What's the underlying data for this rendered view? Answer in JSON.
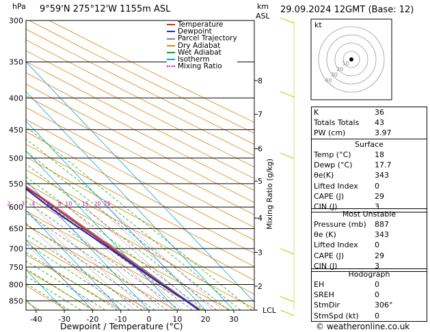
{
  "header": {
    "pressure_unit": "hPa",
    "location": "9°59'N 275°12'W 1155m ASL",
    "km_label": "km",
    "asl_label": "ASL",
    "datetime": "29.09.2024 12GMT (Base: 12)"
  },
  "chart_data": {
    "type": "skew-t log-p",
    "xlabel": "Dewpoint / Temperature (°C)",
    "y2label": "Mixing Ratio (g/kg)",
    "pressure_levels": [
      300,
      350,
      400,
      450,
      500,
      550,
      600,
      650,
      700,
      750,
      800,
      850
    ],
    "temp_ticks": [
      -40,
      -30,
      -20,
      -10,
      0,
      10,
      20,
      30
    ],
    "km_ticks": [
      {
        "label": "8",
        "p": 375
      },
      {
        "label": "7",
        "p": 425
      },
      {
        "label": "6",
        "p": 483
      },
      {
        "label": "5",
        "p": 545
      },
      {
        "label": "4",
        "p": 625
      },
      {
        "label": "3",
        "p": 710
      },
      {
        "label": "2",
        "p": 805
      },
      {
        "label": "LCL",
        "p": 880
      }
    ],
    "mixing_ratio_labels": [
      "1",
      "2",
      "3",
      "4",
      "6",
      "8",
      "10",
      "15",
      "20",
      "25"
    ],
    "legend": [
      {
        "name": "Temperature",
        "color": "#e02020"
      },
      {
        "name": "Dewpoint",
        "color": "#1030d0"
      },
      {
        "name": "Parcel Trajectory",
        "color": "#808080"
      },
      {
        "name": "Dry Adiabat",
        "color": "#e08000"
      },
      {
        "name": "Wet Adiabat",
        "color": "#00aa00"
      },
      {
        "name": "Isotherm",
        "color": "#00a0e0"
      },
      {
        "name": "Mixing Ratio",
        "color": "#d000d0"
      }
    ],
    "legend_position": "top-left",
    "temperature": [
      {
        "p": 880,
        "t": 18.0
      },
      {
        "p": 850,
        "t": 16.4
      },
      {
        "p": 800,
        "t": 13.4
      },
      {
        "p": 750,
        "t": 10.6
      },
      {
        "p": 700,
        "t": 7.6
      },
      {
        "p": 650,
        "t": 4.4
      },
      {
        "p": 600,
        "t": 1.0
      },
      {
        "p": 550,
        "t": -2.8
      },
      {
        "p": 500,
        "t": -7.4
      },
      {
        "p": 450,
        "t": -12.6
      },
      {
        "p": 400,
        "t": -18.4
      },
      {
        "p": 350,
        "t": -26.0
      },
      {
        "p": 300,
        "t": -33.6
      }
    ],
    "dewpoint": [
      {
        "p": 880,
        "t": 17.7
      },
      {
        "p": 850,
        "t": 16.2
      },
      {
        "p": 800,
        "t": 13.0
      },
      {
        "p": 750,
        "t": 10.0
      },
      {
        "p": 700,
        "t": 6.8
      },
      {
        "p": 650,
        "t": 3.0
      },
      {
        "p": 600,
        "t": -0.6
      },
      {
        "p": 550,
        "t": -3.4
      },
      {
        "p": 500,
        "t": -9.0
      },
      {
        "p": 450,
        "t": -15.0
      },
      {
        "p": 400,
        "t": -21.5
      },
      {
        "p": 350,
        "t": -31.0
      },
      {
        "p": 300,
        "t": -40.0
      }
    ],
    "parcel": [
      {
        "p": 880,
        "t": 18.0
      },
      {
        "p": 850,
        "t": 16.6
      },
      {
        "p": 800,
        "t": 14.0
      },
      {
        "p": 750,
        "t": 11.4
      },
      {
        "p": 700,
        "t": 8.4
      },
      {
        "p": 650,
        "t": 5.2
      },
      {
        "p": 600,
        "t": 1.6
      },
      {
        "p": 550,
        "t": -2.4
      },
      {
        "p": 500,
        "t": -7.0
      },
      {
        "p": 450,
        "t": -12.6
      },
      {
        "p": 400,
        "t": -19.4
      },
      {
        "p": 350,
        "t": -27.8
      }
    ]
  },
  "hodograph": {
    "unit_label": "kt",
    "ring_labels": [
      "10",
      "20",
      "30",
      "40"
    ]
  },
  "indices": [
    {
      "label": "K",
      "value": "36"
    },
    {
      "label": "Totals Totals",
      "value": "43"
    },
    {
      "label": "PW (cm)",
      "value": "3.97"
    }
  ],
  "surface": {
    "title": "Surface",
    "rows": [
      {
        "label": "Temp (°C)",
        "value": "18"
      },
      {
        "label": "Dewp (°C)",
        "value": "17.7"
      },
      {
        "label": "θe(K)",
        "value": "343"
      },
      {
        "label": "Lifted Index",
        "value": "0"
      },
      {
        "label": "CAPE (J)",
        "value": "29"
      },
      {
        "label": "CIN (J)",
        "value": "3"
      }
    ]
  },
  "most_unstable": {
    "title": "Most Unstable",
    "rows": [
      {
        "label": "Pressure (mb)",
        "value": "887"
      },
      {
        "label": "θe (K)",
        "value": "343"
      },
      {
        "label": "Lifted Index",
        "value": "0"
      },
      {
        "label": "CAPE (J)",
        "value": "29"
      },
      {
        "label": "CIN (J)",
        "value": "3"
      }
    ]
  },
  "hodograph_table": {
    "title": "Hodograph",
    "rows": [
      {
        "label": "EH",
        "value": "0"
      },
      {
        "label": "SREH",
        "value": "0"
      },
      {
        "label": "StmDir",
        "value": "306°"
      },
      {
        "label": "StmSpd (kt)",
        "value": "0"
      }
    ]
  },
  "footer": {
    "copyright": "© weatheronline.co.uk"
  },
  "colors": {
    "temperature": "#e02020",
    "dewpoint": "#1030d0",
    "parcel": "#808080",
    "dry_adiabat": "#e08000",
    "wet_adiabat": "#00aa00",
    "isotherm": "#00a0e0",
    "mixing_ratio": "#d000d0",
    "wind_barb": "#c8c800"
  }
}
